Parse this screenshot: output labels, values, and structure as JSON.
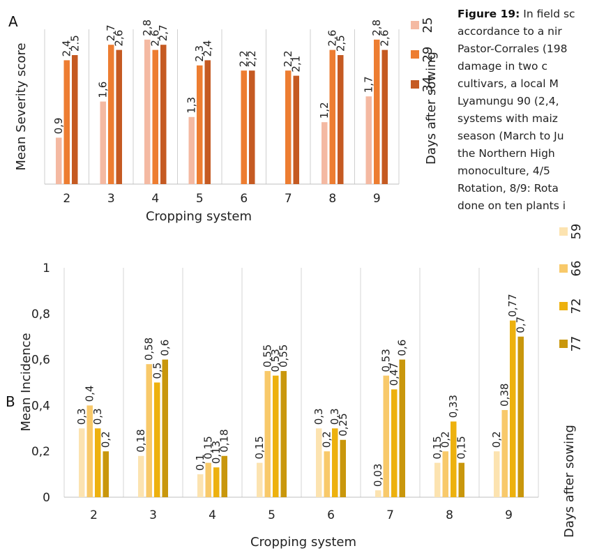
{
  "figure": {
    "caption_lines": [
      {
        "bold": "Figure 19:",
        "text": " In field sc"
      },
      {
        "bold": "",
        "text": "accordance to a nir"
      },
      {
        "bold": "",
        "text": "Pastor-Corrales (198"
      },
      {
        "bold": "",
        "text": "damage  in  two  c"
      },
      {
        "bold": "",
        "text": "cultivars,  a  local  M"
      },
      {
        "bold": "",
        "text": "Lyamungu  90  (2,4,"
      },
      {
        "bold": "",
        "text": "systems  with  maiz"
      },
      {
        "bold": "",
        "text": "season (March to Ju"
      },
      {
        "bold": "",
        "text": "the  Northern  High"
      },
      {
        "bold": "",
        "text": "monoculture,     4/5"
      },
      {
        "bold": "",
        "text": "Rotation,  8/9: Rota"
      },
      {
        "bold": "",
        "text": "done on ten plants i"
      }
    ]
  },
  "chart_data": [
    {
      "panel_label": "A",
      "type": "bar",
      "xlabel": "Cropping system",
      "ylabel": "Mean Severity score",
      "ylim": [
        0,
        3
      ],
      "grid": false,
      "categories": [
        "2",
        "3",
        "4",
        "5",
        "6",
        "7",
        "8",
        "9"
      ],
      "legend": {
        "title": "Days after sowing",
        "position": "right"
      },
      "series": [
        {
          "name": "25",
          "color": "#F4B9A2",
          "values": [
            0.9,
            1.6,
            2.8,
            1.3,
            null,
            null,
            1.2,
            1.7
          ],
          "labels": [
            "0,9",
            "1,6",
            "2,8",
            "1,3",
            "",
            "",
            "1,2",
            "1,7"
          ]
        },
        {
          "name": "29",
          "color": "#ED7D31",
          "values": [
            2.4,
            2.7,
            2.6,
            2.3,
            2.2,
            2.2,
            2.6,
            2.8
          ],
          "labels": [
            "2,4",
            "2,7",
            "2,6",
            "2,3",
            "2,2",
            "2,2",
            "2,6",
            "2,8"
          ]
        },
        {
          "name": "34",
          "color": "#C55A22",
          "values": [
            2.5,
            2.6,
            2.7,
            2.4,
            2.2,
            2.1,
            2.5,
            2.6
          ],
          "labels": [
            "2.5",
            "2,6",
            "2,7",
            "2,4",
            "2,2",
            "2,1",
            "2,5",
            "2,6"
          ]
        }
      ]
    },
    {
      "panel_label": "B",
      "type": "bar",
      "xlabel": "Cropping system",
      "ylabel": "Mean Incidence",
      "ylim": [
        0,
        1
      ],
      "yticks": [
        "0",
        "0,2",
        "0,4",
        "0,6",
        "0,8",
        "1"
      ],
      "grid": false,
      "categories": [
        "2",
        "3",
        "4",
        "5",
        "6",
        "7",
        "8",
        "9"
      ],
      "legend": {
        "title": "Days after sowing",
        "position": "right"
      },
      "series": [
        {
          "name": "59",
          "color": "#FCE3B0",
          "values": [
            0.3,
            0.18,
            0.1,
            0.15,
            0.3,
            0.03,
            0.15,
            0.2
          ],
          "labels": [
            "0,3",
            "0,18",
            "0,1",
            "0,15",
            "0,3",
            "0,03",
            "0,15",
            "0,2"
          ]
        },
        {
          "name": "66",
          "color": "#F8C96A",
          "values": [
            0.4,
            0.58,
            0.15,
            0.55,
            0.2,
            0.53,
            0.2,
            0.38
          ],
          "labels": [
            "0,4",
            "0,58",
            "0,15",
            "0,55",
            "0,2",
            "0,53",
            "0,2",
            "0,38"
          ]
        },
        {
          "name": "72",
          "color": "#EDB10E",
          "values": [
            0.3,
            0.5,
            0.13,
            0.53,
            0.3,
            0.47,
            0.33,
            0.77
          ],
          "labels": [
            "0,3",
            "0,5",
            "0,13",
            "0,53",
            "0,3",
            "0,47",
            "0,33",
            "0,77"
          ]
        },
        {
          "name": "77",
          "color": "#C9970C",
          "values": [
            0.2,
            0.6,
            0.18,
            0.55,
            0.25,
            0.6,
            0.15,
            0.7
          ],
          "labels": [
            "0,2",
            "0,6",
            "0,18",
            "0,55",
            "0,25",
            "0,6",
            "0,15",
            "0,7"
          ]
        }
      ]
    }
  ]
}
